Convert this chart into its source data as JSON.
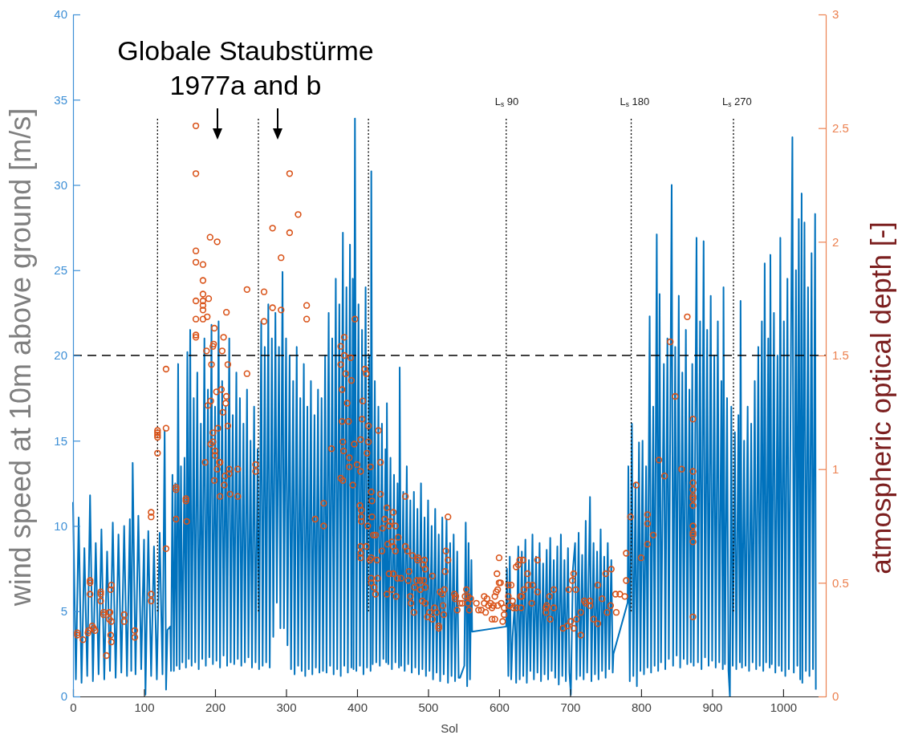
{
  "chart_data": {
    "type": "line",
    "xlabel": "Sol",
    "ylabel": "wind speed at 10m above ground [m/s]",
    "y2label": "atmospheric optical depth [-]",
    "annotations": [
      "Globale Staubstürme\n1977a and b"
    ],
    "xlim": [
      0,
      1060
    ],
    "xticks": [
      0,
      100,
      200,
      300,
      400,
      500,
      600,
      700,
      800,
      900,
      1000
    ],
    "ylim": [
      0,
      40
    ],
    "yticks": [
      0,
      5,
      10,
      15,
      20,
      25,
      30,
      35,
      40
    ],
    "y2lim": [
      0,
      3
    ],
    "y2ticks": [
      0,
      0.5,
      1,
      1.5,
      2,
      2.5,
      3
    ],
    "ref_lines": [
      {
        "axis": "y",
        "value": 20,
        "line_style": "dashed"
      },
      {
        "axis": "x",
        "value": 119,
        "line_style": "dotted"
      },
      {
        "axis": "x",
        "value": 261,
        "line_style": "dotted"
      },
      {
        "axis": "x",
        "value": 416,
        "line_style": "dotted"
      },
      {
        "axis": "x",
        "value": 610,
        "label": "L$_{s}$ 90",
        "line_style": "dotted"
      },
      {
        "axis": "x",
        "value": 786,
        "label": "L$_{s}$ 180",
        "line_style": "dotted"
      },
      {
        "axis": "x",
        "value": 930,
        "label": "L$_{s}$ 270",
        "line_style": "dotted"
      }
    ],
    "series": [
      {
        "type": "line",
        "color": "#0072bd",
        "x": [
          0,
          4,
          8,
          12,
          16,
          20,
          24,
          28,
          32,
          36,
          40,
          44,
          48,
          52,
          56,
          60,
          64,
          68,
          72,
          76,
          80,
          82,
          84,
          88,
          92,
          96,
          100,
          102,
          106,
          110,
          114,
          118,
          122,
          126,
          129,
          131,
          133,
          137,
          138,
          140,
          142,
          144,
          146,
          148,
          150,
          152,
          154,
          157,
          159,
          161,
          163,
          165,
          167,
          170,
          172,
          175,
          177,
          180,
          182,
          185,
          187,
          190,
          192,
          195,
          197,
          200,
          202,
          205,
          207,
          210,
          212,
          215,
          217,
          220,
          222,
          225,
          227,
          230,
          232,
          235,
          237,
          240,
          242,
          245,
          247,
          250,
          252,
          255,
          257,
          260,
          262,
          265,
          267,
          270,
          272,
          275,
          277,
          280,
          282,
          285,
          287,
          290,
          292,
          295,
          297,
          300,
          302,
          305,
          307,
          310,
          312,
          315,
          317,
          320,
          322,
          325,
          327,
          330,
          332,
          335,
          337,
          340,
          342,
          345,
          347,
          350,
          352,
          355,
          357,
          360,
          362,
          365,
          367,
          370,
          372,
          375,
          377,
          380,
          382,
          385,
          387,
          390,
          392,
          394,
          395,
          397,
          399,
          402,
          404,
          407,
          409,
          412,
          414,
          417,
          419,
          420,
          422,
          425,
          427,
          430,
          432,
          435,
          437,
          440,
          441,
          442,
          444,
          447,
          449,
          452,
          454,
          457,
          459,
          460,
          462,
          465,
          467,
          470,
          472,
          475,
          477,
          480,
          482,
          485,
          487,
          490,
          492,
          495,
          497,
          500,
          502,
          505,
          507,
          510,
          512,
          515,
          517,
          520,
          522,
          526,
          528,
          531,
          533,
          536,
          538,
          541,
          543,
          545,
          551,
          553,
          555,
          557,
          559,
          561,
          562,
          610,
          611,
          613,
          615,
          617,
          619,
          622,
          624,
          627,
          629,
          632,
          634,
          637,
          639,
          642,
          644,
          647,
          649,
          652,
          654,
          657,
          659,
          662,
          664,
          667,
          669,
          672,
          674,
          677,
          679,
          682,
          684,
          687,
          689,
          692,
          694,
          697,
          699,
          701,
          704,
          707,
          709,
          712,
          714,
          717,
          719,
          722,
          724,
          728,
          730,
          733,
          735,
          738,
          740,
          743,
          745,
          748,
          750,
          753,
          755,
          758,
          760,
          761,
          781,
          782,
          784,
          787,
          789,
          792,
          794,
          797,
          799,
          802,
          804,
          807,
          809,
          812,
          814,
          817,
          819,
          822,
          824,
          826,
          828,
          832,
          834,
          837,
          839,
          843,
          845,
          848,
          850,
          853,
          855,
          858,
          860,
          863,
          865,
          868,
          870,
          872,
          874,
          878,
          880,
          883,
          885,
          888,
          890,
          893,
          895,
          898,
          900,
          903,
          905,
          908,
          910,
          913,
          915,
          916,
          918,
          921,
          923,
          925,
          927,
          929,
          932,
          934,
          937,
          939,
          940,
          942,
          945,
          947,
          950,
          952,
          955,
          957,
          960,
          962,
          965,
          967,
          970,
          972,
          974,
          976,
          979,
          981,
          982,
          984,
          987,
          989,
          992,
          994,
          996,
          998,
          1001,
          1003,
          1006,
          1008,
          1013,
          1015,
          1018,
          1020,
          1022,
          1024,
          1026,
          1027,
          1030,
          1032,
          1035,
          1037,
          1040,
          1042,
          1045,
          1046
        ],
        "values": [
          11.4,
          1.0,
          10.5,
          0.8,
          8.7,
          1.2,
          11.8,
          0.9,
          9.0,
          1.3,
          9.8,
          1.0,
          8.5,
          1.5,
          10.2,
          1.1,
          9.5,
          1.4,
          10.0,
          1.2,
          10.4,
          1.5,
          13.7,
          1.3,
          10.6,
          1.6,
          9.2,
          0.1,
          9.7,
          1.2,
          8.8,
          1.0,
          9.6,
          1.3,
          15.6,
          0.4,
          3.9,
          4.1,
          1.5,
          13.0,
          1.5,
          12.5,
          1.8,
          19.5,
          1.6,
          13.5,
          2.0,
          14.0,
          1.7,
          20.2,
          2.2,
          21.5,
          1.8,
          17.5,
          2.0,
          19.0,
          1.6,
          16.0,
          2.2,
          21.0,
          1.8,
          18.0,
          2.3,
          21.8,
          1.9,
          17.0,
          2.1,
          22.0,
          1.7,
          18.5,
          2.4,
          17.0,
          1.8,
          21.0,
          2.0,
          16.5,
          1.9,
          19.0,
          2.2,
          17.5,
          1.8,
          16.0,
          2.0,
          18.0,
          2.3,
          15.0,
          1.7,
          17.0,
          2.0,
          14.5,
          1.6,
          22.0,
          1.8,
          20.5,
          2.0,
          23.0,
          1.7,
          21.0,
          3.5,
          22.5,
          5.5,
          20.5,
          4.0,
          24.9,
          4.0,
          21.0,
          3.0,
          20.0,
          1.6,
          18.5,
          1.3,
          20.5,
          1.8,
          17.5,
          1.5,
          19.5,
          1.2,
          17.0,
          1.6,
          18.5,
          1.3,
          16.5,
          1.7,
          18.0,
          1.4,
          17.5,
          1.5,
          20.0,
          1.4,
          22.5,
          1.8,
          21.0,
          1.3,
          24.5,
          1.6,
          23.0,
          1.2,
          27.2,
          1.8,
          24.0,
          1.4,
          26.5,
          1.7,
          24.5,
          1.6,
          33.9,
          1.5,
          23.0,
          1.8,
          21.5,
          1.3,
          24.0,
          1.7,
          20.0,
          1.5,
          30.8,
          1.9,
          18.5,
          2.0,
          17.0,
          1.8,
          16.0,
          2.2,
          14.5,
          2.0,
          17.2,
          1.9,
          14.0,
          1.6,
          13.0,
          2.0,
          12.5,
          1.7,
          19.3,
          1.8,
          12.0,
          1.5,
          13.5,
          1.9,
          11.5,
          1.4,
          12.0,
          1.7,
          11.0,
          1.3,
          12.5,
          1.6,
          10.5,
          1.2,
          11.5,
          1.5,
          10.0,
          1.0,
          11.0,
          1.4,
          9.5,
          0.9,
          10.5,
          1.3,
          10.4,
          0.8,
          9.0,
          1.2,
          9.5,
          0.9,
          8.5,
          1.1,
          1.1,
          1.8,
          10.2,
          0.6,
          9.0,
          1.0,
          8.0,
          3.8,
          4.1,
          7.5,
          1.2,
          8.2,
          1.0,
          3.5,
          5.5,
          0.8,
          8.8,
          1.0,
          8.5,
          1.2,
          9.2,
          0.8,
          8.0,
          1.5,
          9.5,
          1.0,
          8.2,
          1.4,
          9.0,
          0.9,
          7.8,
          1.3,
          8.6,
          1.0,
          9.3,
          1.5,
          8.0,
          1.1,
          8.8,
          0.7,
          9.5,
          1.2,
          8.0,
          0.9,
          8.7,
          1.4,
          0.1,
          7.5,
          9.0,
          1.0,
          9.6,
          1.2,
          8.3,
          1.0,
          10.3,
          1.4,
          11.7,
          0.9,
          9.0,
          1.3,
          8.5,
          1.0,
          9.8,
          1.5,
          8.2,
          1.1,
          9.0,
          1.6,
          8.0,
          1.4,
          2.5,
          5.5,
          13.5,
          0.9,
          16.0,
          1.2,
          12.5,
          0.6,
          14.9,
          1.5,
          15.0,
          1.3,
          13.5,
          1.7,
          22.3,
          1.4,
          17.0,
          1.8,
          27.1,
          1.5,
          23.6,
          2.0,
          19.5,
          1.6,
          21.0,
          2.2,
          30.0,
          1.8,
          20.5,
          2.4,
          23.5,
          1.7,
          19.0,
          2.2,
          21.5,
          1.9,
          18.0,
          2.0,
          19.5,
          1.8,
          26.9,
          2.0,
          22.0,
          1.6,
          26.7,
          2.3,
          21.5,
          1.8,
          23.5,
          2.1,
          20.0,
          1.7,
          22.0,
          2.0,
          18.5,
          1.6,
          24.0,
          1.9,
          17.5,
          1.5,
          0.0,
          17.0,
          1.8,
          15.5,
          1.6,
          16.5,
          2.0,
          23.2,
          1.7,
          15.0,
          1.8,
          17.0,
          1.5,
          16.0,
          2.0,
          18.5,
          1.6,
          20.5,
          1.8,
          22.0,
          1.5,
          25.4,
          2.0,
          21.0,
          1.7,
          25.9,
          1.9,
          22.5,
          1.4,
          20.0,
          1.8,
          26.9,
          1.5,
          22.0,
          1.2,
          24.5,
          1.6,
          32.8,
          1.4,
          25.0,
          1.8,
          28.0,
          1.0,
          29.5,
          0.8,
          27.8,
          1.5,
          24.0,
          1.2,
          26.0,
          1.6,
          28.3,
          0.4
        ]
      },
      {
        "type": "scatter",
        "axis": "y2",
        "color": "#d95319",
        "marker": "circle",
        "x": [
          6,
          6,
          14,
          21,
          22,
          24,
          24,
          24,
          27,
          29,
          31,
          39,
          39,
          39,
          43,
          43,
          47,
          51,
          52,
          51,
          53,
          54,
          54,
          53,
          54,
          72,
          72,
          87,
          87,
          110,
          110,
          110,
          110,
          119,
          119,
          119,
          119,
          119,
          131,
          131,
          131,
          145,
          145,
          145,
          159,
          159,
          160,
          173,
          173,
          173,
          173,
          173,
          173,
          173,
          173,
          183,
          183,
          183,
          183,
          183,
          183,
          183,
          186,
          188,
          189,
          190,
          191,
          193,
          194,
          194,
          195,
          197,
          198,
          197,
          197,
          199,
          199,
          200,
          200,
          202,
          203,
          203,
          204,
          206,
          207,
          207,
          209,
          210,
          211,
          212,
          213,
          214,
          215,
          216,
          216,
          218,
          218,
          220,
          220,
          221,
          232,
          232,
          245,
          245,
          257,
          257,
          269,
          269,
          281,
          281,
          293,
          293,
          305,
          305,
          317,
          329,
          329,
          341,
          353,
          353,
          364,
          377,
          377,
          377,
          379,
          379,
          380,
          380,
          381,
          382,
          382,
          384,
          386,
          388,
          389,
          389,
          391,
          392,
          394,
          396,
          397,
          400,
          404,
          405,
          405,
          406,
          406,
          406,
          405,
          405,
          405,
          407,
          408,
          411,
          413,
          413,
          414,
          415,
          416,
          416,
          418,
          419,
          420,
          421,
          421,
          420,
          420,
          420,
          424,
          426,
          423,
          426,
          428,
          429,
          430,
          433,
          433,
          435,
          436,
          439,
          442,
          442,
          443,
          445,
          445,
          447,
          449,
          449,
          451,
          451,
          451,
          454,
          454,
          455,
          457,
          458,
          462,
          468,
          468,
          471,
          472,
          473,
          475,
          476,
          478,
          480,
          481,
          484,
          485,
          486,
          489,
          489,
          492,
          493,
          494,
          495,
          496,
          496,
          496,
          499,
          502,
          506,
          506,
          509,
          512,
          515,
          515,
          517,
          520,
          521,
          522,
          523,
          524,
          525,
          528,
          528,
          537,
          539,
          538,
          541,
          545,
          548,
          552,
          554,
          556,
          556,
          558,
          560,
          568,
          571,
          575,
          579,
          579,
          581,
          583,
          585,
          588,
          590,
          590,
          592,
          594,
          594,
          596,
          597,
          598,
          598,
          600,
          600,
          602,
          605,
          607,
          603,
          607,
          613,
          613,
          615,
          617,
          619,
          620,
          624,
          624,
          627,
          629,
          630,
          631,
          632,
          634,
          635,
          640,
          641,
          647,
          646,
          654,
          654,
          666,
          666,
          667,
          671,
          672,
          677,
          677,
          690,
          696,
          698,
          701,
          703,
          705,
          705,
          708,
          709,
          715,
          715,
          720,
          722,
          728,
          728,
          733,
          739,
          739,
          745,
          750,
          752,
          757,
          758,
          764,
          765,
          770,
          777,
          779,
          779,
          785,
          793,
          800,
          809,
          809,
          809,
          817,
          825,
          833,
          841,
          848,
          857,
          865,
          873,
          873,
          873,
          873,
          873,
          873,
          873,
          873,
          873,
          873,
          873,
          873
        ],
        "values": [
          0.28,
          0.27,
          0.25,
          0.28,
          0.29,
          0.51,
          0.5,
          0.45,
          0.31,
          0.3,
          0.29,
          0.45,
          0.46,
          0.42,
          0.36,
          0.37,
          0.18,
          0.37,
          0.37,
          0.34,
          0.47,
          0.49,
          0.33,
          0.27,
          0.24,
          0.36,
          0.33,
          0.29,
          0.26,
          0.81,
          0.79,
          0.45,
          0.42,
          1.17,
          1.16,
          1.15,
          1.14,
          1.07,
          1.44,
          1.18,
          0.65,
          0.92,
          0.91,
          0.78,
          0.87,
          0.86,
          0.77,
          2.51,
          2.3,
          1.96,
          1.91,
          1.74,
          1.66,
          1.59,
          1.58,
          1.9,
          1.83,
          1.77,
          1.74,
          1.72,
          1.7,
          1.66,
          1.03,
          1.52,
          1.67,
          1.28,
          1.75,
          2.02,
          1.3,
          1.11,
          1.46,
          1.54,
          1.55,
          1.16,
          1.12,
          1.62,
          0.95,
          1.08,
          1.06,
          1.34,
          2.0,
          1.0,
          1.18,
          1.03,
          1.03,
          0.88,
          1.35,
          1.52,
          1.25,
          1.58,
          0.93,
          0.97,
          1.29,
          1.69,
          1.32,
          1.46,
          1.19,
          1.0,
          0.98,
          0.89,
          1.0,
          0.88,
          1.79,
          1.42,
          1.02,
          0.99,
          1.78,
          1.65,
          2.06,
          1.71,
          1.93,
          1.7,
          2.3,
          2.04,
          2.12,
          1.72,
          1.66,
          0.78,
          0.85,
          0.75,
          1.09,
          1.54,
          1.46,
          0.96,
          1.35,
          1.21,
          1.12,
          0.95,
          1.08,
          1.58,
          1.5,
          1.42,
          1.29,
          1.21,
          1.05,
          1.01,
          1.49,
          1.39,
          0.93,
          1.11,
          1.66,
          1.02,
          0.84,
          1.13,
          0.99,
          0.82,
          0.79,
          0.77,
          0.66,
          0.63,
          0.61,
          1.22,
          1.3,
          1.44,
          1.42,
          0.66,
          1.07,
          0.75,
          1.19,
          1.12,
          0.6,
          1.01,
          0.9,
          0.86,
          0.79,
          0.61,
          0.52,
          0.5,
          0.48,
          0.45,
          0.71,
          0.71,
          0.6,
          0.52,
          1.17,
          1.03,
          0.89,
          0.64,
          0.74,
          0.78,
          0.83,
          0.45,
          0.67,
          0.75,
          0.54,
          0.77,
          0.68,
          0.47,
          0.81,
          0.66,
          0.54,
          0.75,
          0.64,
          0.44,
          0.52,
          0.7,
          0.52,
          0.88,
          0.66,
          0.64,
          0.51,
          0.55,
          0.44,
          0.41,
          0.62,
          0.37,
          0.48,
          0.51,
          0.6,
          0.61,
          0.47,
          0.51,
          0.42,
          0.58,
          0.51,
          0.6,
          0.56,
          0.41,
          0.48,
          0.35,
          0.37,
          0.53,
          0.34,
          0.39,
          0.37,
          0.31,
          0.3,
          0.46,
          0.45,
          0.4,
          0.36,
          0.47,
          0.55,
          0.64,
          0.6,
          0.79,
          0.45,
          0.44,
          0.43,
          0.38,
          0.41,
          0.41,
          0.44,
          0.47,
          0.44,
          0.41,
          0.38,
          0.43,
          0.41,
          0.38,
          0.38,
          0.44,
          0.41,
          0.37,
          0.43,
          0.4,
          0.41,
          0.39,
          0.34,
          0.4,
          0.44,
          0.34,
          0.46,
          0.54,
          0.47,
          0.4,
          0.5,
          0.61,
          0.5,
          0.33,
          0.36,
          0.41,
          0.39,
          0.44,
          0.49,
          0.4,
          0.49,
          0.42,
          0.39,
          0.39,
          0.57,
          0.58,
          0.6,
          0.44,
          0.39,
          0.44,
          0.6,
          0.47,
          0.54,
          0.49,
          0.49,
          0.41,
          0.46,
          0.6,
          0.39,
          0.37,
          0.4,
          0.44,
          0.34,
          0.39,
          0.47,
          0.3,
          0.31,
          0.47,
          0.33,
          0.51,
          0.54,
          0.3,
          0.47,
          0.34,
          0.37,
          0.27,
          0.42,
          0.41,
          0.42,
          0.4,
          0.34,
          0.49,
          0.32,
          0.43,
          0.54,
          0.37,
          0.4,
          0.56,
          0.45,
          0.37,
          0.45,
          0.44,
          0.63,
          0.51,
          0.79,
          0.93,
          0.61,
          0.8,
          0.76,
          0.67,
          0.71,
          1.04,
          0.97,
          1.56,
          1.32,
          1.0,
          1.67,
          1.22,
          0.99,
          0.94,
          0.91,
          0.88,
          0.87,
          0.84,
          0.75,
          0.72,
          0.71,
          0.68,
          0.35
        ]
      }
    ]
  }
}
